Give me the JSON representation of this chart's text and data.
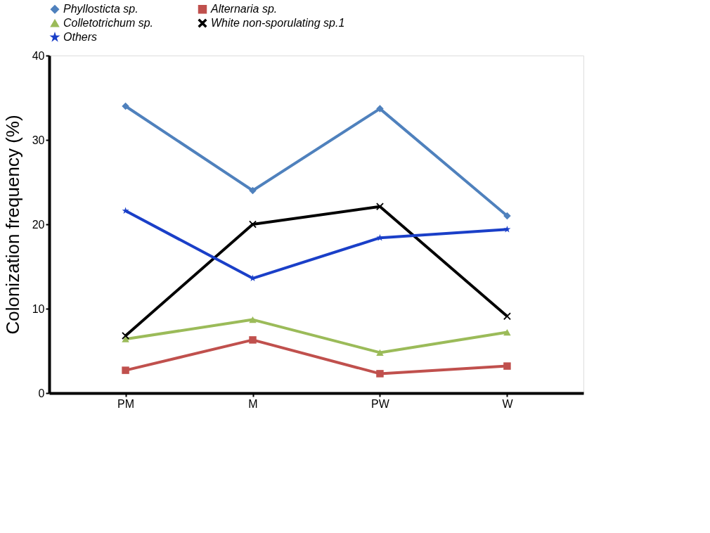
{
  "chart_data": {
    "type": "line",
    "ylabel": "Colonization  frequency (%)",
    "categories": [
      "PM",
      "M",
      "PW",
      "W"
    ],
    "series": [
      {
        "name": "Phyllosticta sp.",
        "color": "#4f81bd",
        "marker": "diamond",
        "values": [
          34.0,
          24.0,
          33.7,
          21.0
        ]
      },
      {
        "name": "Alternaria sp.",
        "color": "#c0504d",
        "marker": "square",
        "values": [
          2.7,
          6.3,
          2.3,
          3.2
        ]
      },
      {
        "name": "Colletotrichum sp.",
        "color": "#9bbb59",
        "marker": "triangle",
        "values": [
          6.4,
          8.7,
          4.8,
          7.2
        ]
      },
      {
        "name": "White non-sporulating sp.1",
        "color": "#000000",
        "marker": "cross",
        "values": [
          6.8,
          20.0,
          22.1,
          9.1
        ]
      },
      {
        "name": "Others",
        "color": "#1a3fc8",
        "marker": "star",
        "values": [
          21.6,
          13.6,
          18.4,
          19.4
        ]
      }
    ],
    "ylim": [
      0,
      40
    ],
    "yticks": [
      0,
      10,
      20,
      30,
      40
    ],
    "grid": false,
    "legend": "top",
    "line_style": "solid"
  }
}
